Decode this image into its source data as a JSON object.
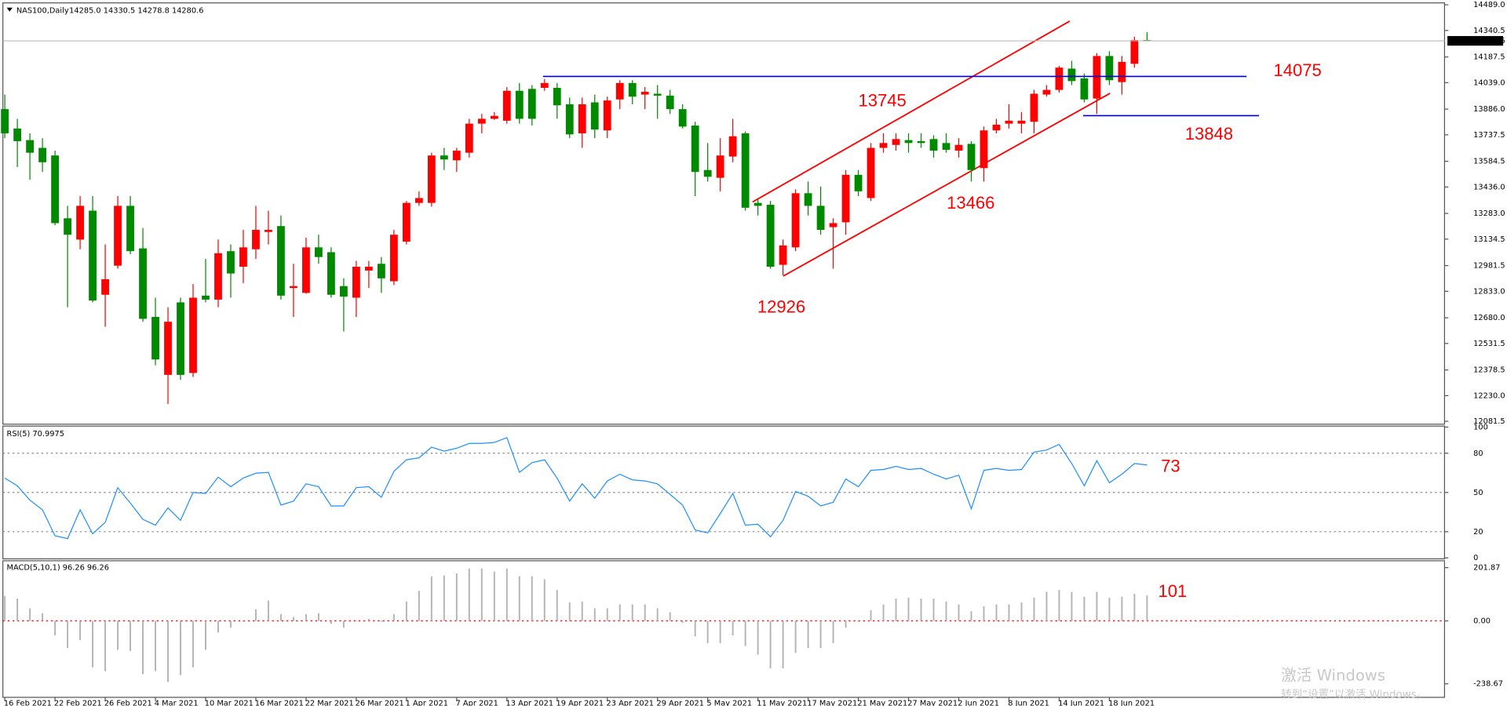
{
  "header": {
    "symbol": "NAS100,Daily",
    "ohlc": "14285.0 14330.5 14278.8 14280.6"
  },
  "chart_data": [
    {
      "type": "candlestick",
      "categories": [
        "16 Feb 2021",
        null,
        null,
        null,
        "22 Feb 2021",
        null,
        null,
        null,
        "26 Feb 2021",
        null,
        null,
        null,
        "4 Mar 2021",
        null,
        null,
        null,
        "10 Mar 2021",
        null,
        null,
        null,
        "16 Mar 2021",
        null,
        null,
        null,
        "22 Mar 2021",
        null,
        null,
        null,
        "26 Mar 2021",
        null,
        null,
        null,
        "1 Apr 2021",
        null,
        null,
        null,
        "7 Apr 2021",
        null,
        null,
        null,
        "13 Apr 2021",
        null,
        null,
        null,
        "19 Apr 2021",
        null,
        null,
        null,
        "23 Apr 2021",
        null,
        null,
        null,
        "29 Apr 2021",
        null,
        null,
        null,
        "5 May 2021",
        null,
        null,
        null,
        "11 May 2021",
        null,
        null,
        null,
        "17 May 2021",
        null,
        null,
        null,
        "21 May 2021",
        null,
        null,
        null,
        "27 May 2021",
        null,
        null,
        null,
        "2 Jun 2021",
        null,
        null,
        null,
        "8 Jun 2021",
        null,
        null,
        null,
        "14 Jun 2021",
        null,
        null,
        null,
        "18 Jun 2021",
        null,
        null,
        null
      ],
      "open": [
        13886,
        13774,
        13707,
        13662,
        13618,
        13255,
        13132,
        13299,
        12813,
        12981,
        13327,
        13081,
        12685,
        12350,
        12769,
        12361,
        12808,
        12785,
        13065,
        12975,
        13076,
        13176,
        13210,
        12852,
        12824,
        13087,
        13059,
        12863,
        12796,
        12953,
        12992,
        12891,
        13120,
        13344,
        13344,
        13618,
        13590,
        13634,
        13802,
        13830,
        13819,
        13992,
        14003,
        14009,
        14009,
        13914,
        13746,
        13925,
        13763,
        13942,
        14037,
        13970,
        13975,
        13964,
        13886,
        13791,
        13534,
        13489,
        13612,
        13746,
        13344,
        13333,
        12986,
        13087,
        13400,
        13327,
        13204,
        13232,
        13506,
        13372,
        13662,
        13679,
        13707,
        13701,
        13713,
        13690,
        13646,
        13685,
        13545,
        13763,
        13802,
        13802,
        13813,
        13970,
        13997,
        14120,
        14064,
        13947,
        14193,
        14042,
        14148,
        14285.0
      ],
      "high": [
        13970,
        13830,
        13746,
        13718,
        13646,
        13327,
        13383,
        13383,
        13104,
        13383,
        13383,
        13199,
        12796,
        12741,
        12796,
        12875,
        13020,
        13132,
        13104,
        13188,
        13327,
        13299,
        13271,
        12992,
        13143,
        13160,
        13087,
        12908,
        13009,
        13009,
        13031,
        13188,
        13355,
        13411,
        13634,
        13662,
        13662,
        13830,
        13858,
        13869,
        14014,
        14037,
        14025,
        14059,
        14037,
        13953,
        13953,
        13970,
        13958,
        14053,
        14053,
        14014,
        14025,
        13997,
        13914,
        13813,
        13690,
        13718,
        13830,
        13757,
        13366,
        13355,
        13132,
        13422,
        13467,
        13439,
        13255,
        13534,
        13534,
        13690,
        13746,
        13746,
        13746,
        13746,
        13735,
        13746,
        13718,
        13701,
        13785,
        13830,
        13914,
        13869,
        13997,
        14025,
        14137,
        14165,
        14092,
        14210,
        14221,
        14193,
        14305,
        14330.5
      ],
      "low": [
        13718,
        13551,
        13478,
        13523,
        13215,
        12741,
        13076,
        12769,
        12628,
        12964,
        13048,
        12657,
        12405,
        12182,
        12322,
        12338,
        12769,
        12741,
        12796,
        12880,
        13020,
        13104,
        12785,
        12685,
        12819,
        12992,
        12796,
        12601,
        12685,
        12852,
        12824,
        12869,
        13104,
        13327,
        13322,
        13534,
        13523,
        13606,
        13746,
        13824,
        13802,
        13802,
        13791,
        13992,
        13830,
        13718,
        13662,
        13718,
        13718,
        13886,
        13914,
        13886,
        13830,
        13858,
        13774,
        13383,
        13467,
        13411,
        13579,
        13299,
        13271,
        12964,
        12926,
        13065,
        13271,
        13160,
        12964,
        13160,
        13383,
        13355,
        13634,
        13646,
        13634,
        13662,
        13606,
        13634,
        13606,
        13467,
        13467,
        13746,
        13774,
        13746,
        13746,
        13958,
        13981,
        14025,
        13925,
        13858,
        14025,
        13970,
        14126,
        14278.8
      ],
      "close": [
        13746,
        13701,
        13634,
        13579,
        13227,
        13160,
        13327,
        12780,
        12903,
        13327,
        13065,
        12674,
        12439,
        12657,
        12350,
        12796,
        12785,
        13053,
        12936,
        13087,
        13188,
        13188,
        12808,
        12863,
        13087,
        13031,
        12813,
        12802,
        12975,
        12975,
        12908,
        13160,
        13344,
        13372,
        13618,
        13595,
        13646,
        13802,
        13830,
        13847,
        13992,
        13830,
        13830,
        14037,
        13908,
        13740,
        13914,
        13768,
        13936,
        14037,
        13958,
        13986,
        13964,
        13886,
        13785,
        13523,
        13495,
        13618,
        13729,
        13316,
        13327,
        12975,
        13098,
        13400,
        13327,
        13188,
        13227,
        13506,
        13411,
        13662,
        13690,
        13713,
        13690,
        13690,
        13646,
        13651,
        13679,
        13534,
        13763,
        13796,
        13819,
        13819,
        13975,
        13997,
        14126,
        14048,
        13942,
        14193,
        14053,
        14159,
        14285,
        14280.6
      ],
      "up_color": "#ff0000",
      "down_color": "#008a00",
      "ylim": [
        12065,
        14500
      ],
      "yticks": [
        {
          "value": 14489,
          "label": "14489.0"
        },
        {
          "value": 14340.5,
          "label": "14340.5"
        },
        {
          "value": 14187.5,
          "label": "14187.5"
        },
        {
          "value": 14039,
          "label": "14039.0"
        },
        {
          "value": 13886,
          "label": "13886.0"
        },
        {
          "value": 13737.5,
          "label": "13737.5"
        },
        {
          "value": 13584.5,
          "label": "13584.5"
        },
        {
          "value": 13436,
          "label": "13436.0"
        },
        {
          "value": 13283,
          "label": "13283.0"
        },
        {
          "value": 13134.5,
          "label": "13134.5"
        },
        {
          "value": 12981.5,
          "label": "12981.5"
        },
        {
          "value": 12833,
          "label": "12833.0"
        },
        {
          "value": 12680,
          "label": "12680.0"
        },
        {
          "value": 12531.5,
          "label": "12531.5"
        },
        {
          "value": 12378.5,
          "label": "12378.5"
        },
        {
          "value": 12230,
          "label": "12230.0"
        },
        {
          "value": 12081.5,
          "label": "12081.5"
        }
      ],
      "current_price": 14280.6,
      "annotations": [
        14075,
        13745,
        13848,
        13466,
        12926
      ],
      "annotation_color": "#ff0000",
      "level_color": "#0000cc"
    },
    {
      "type": "line",
      "title": "RSI(5) 70.9975",
      "color": "#1e90ff",
      "values": [
        61.0,
        55.1,
        44.1,
        36.8,
        16.9,
        14.7,
        36.8,
        18.4,
        27.2,
        53.7,
        41.9,
        29.4,
        25.0,
        38.2,
        28.7,
        50.0,
        49.3,
        61.8,
        54.4,
        61.0,
        64.7,
        65.4,
        40.4,
        43.4,
        56.6,
        54.4,
        39.7,
        39.7,
        53.7,
        54.4,
        46.3,
        66.2,
        75.0,
        76.5,
        84.6,
        81.6,
        83.8,
        87.5,
        87.5,
        88.2,
        91.9,
        65.4,
        72.8,
        75.0,
        61.0,
        43.4,
        56.6,
        45.6,
        58.8,
        64.0,
        59.6,
        58.8,
        56.6,
        48.5,
        40.4,
        21.3,
        19.1,
        33.8,
        49.3,
        25.0,
        25.7,
        16.2,
        28.7,
        50.7,
        47.1,
        39.7,
        42.6,
        60.3,
        54.4,
        66.9,
        67.6,
        69.9,
        67.6,
        68.4,
        64.0,
        60.3,
        63.2,
        37.5,
        66.9,
        68.4,
        66.9,
        67.6,
        80.9,
        82.4,
        86.8,
        72.1,
        55.1,
        74.3,
        57.4,
        64.0,
        72.1,
        70.9975
      ],
      "ylim": [
        0,
        100
      ],
      "yticks": [
        0,
        20,
        50,
        80,
        100
      ],
      "grid": true,
      "annotations": [
        73
      ],
      "annotation_color": "#ff0000"
    },
    {
      "type": "bar",
      "title": "MACD(5,10,1) 96.26 96.26",
      "color": "#b4b4b4",
      "values": [
        95,
        84.4,
        47.7,
        29.4,
        -55.1,
        -102.8,
        -73.4,
        -176.2,
        -190.9,
        -110.1,
        -113.8,
        -201.9,
        -190.9,
        -231.3,
        -205.6,
        -176.2,
        -110.1,
        -44.1,
        -25.7,
        -3.7,
        44.1,
        77.1,
        25.7,
        14.7,
        25.7,
        29.4,
        -11.0,
        -25.7,
        2.0,
        7.3,
        -3.7,
        25.7,
        73.4,
        113.8,
        168.9,
        172.5,
        179.9,
        198.2,
        198.2,
        187.2,
        198.2,
        168.9,
        168.9,
        157.9,
        117.5,
        69.8,
        73.4,
        47.7,
        47.7,
        62.4,
        62.4,
        62.4,
        47.7,
        33.0,
        -7.3,
        -58.7,
        -84.4,
        -84.4,
        -55.1,
        -95.4,
        -128.5,
        -179.9,
        -179.9,
        -121.1,
        -102.8,
        -102.8,
        -84.4,
        -25.7,
        -3.7,
        40.4,
        62.4,
        84.4,
        88.1,
        84.4,
        84.4,
        73.4,
        62.4,
        36.7,
        55.1,
        62.4,
        62.4,
        69.8,
        88.1,
        110.1,
        117.5,
        110.1,
        91.8,
        110.1,
        88.1,
        91.8,
        102.8,
        96.26
      ],
      "ylim": [
        -290,
        228
      ],
      "yticks": [
        201.87,
        {
          "value": 0,
          "label": "0.00"
        },
        -238.67
      ],
      "baseline_color": "#ff0000",
      "annotations": [
        101
      ],
      "annotation_color": "#ff0000"
    }
  ],
  "watermark": {
    "line1": "激活 Windows",
    "line2": "转到“设置”以激活 Windows。"
  }
}
